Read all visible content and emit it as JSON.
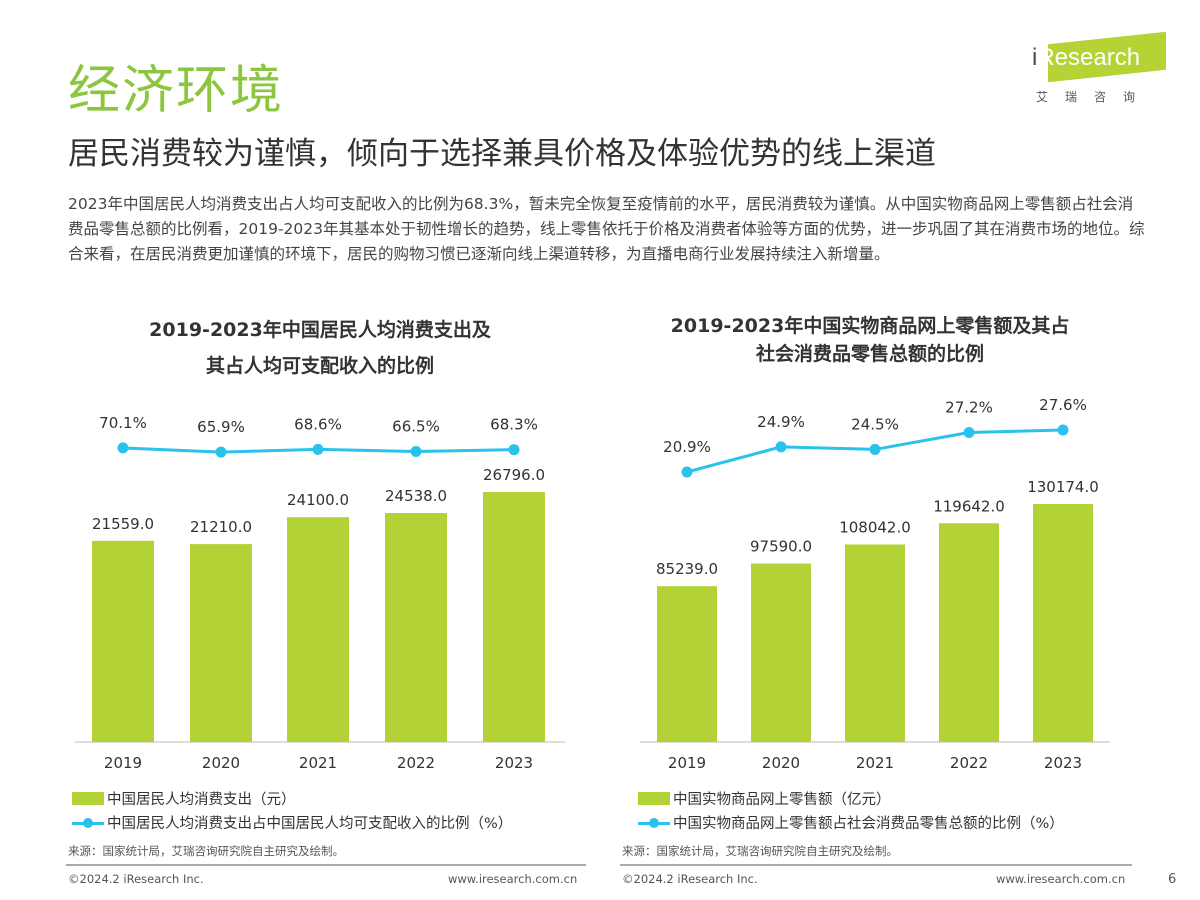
{
  "header": {
    "section_title": "经济环境",
    "subtitle": "居民消费较为谨慎，倾向于选择兼具价格及体验优势的线上渠道",
    "body": "2023年中国居民人均消费支出占人均可支配收入的比例为68.3%，暂未完全恢复至疫情前的水平，居民消费较为谨慎。从中国实物商品网上零售额占社会消费品零售总额的比例看，2019-2023年其基本处于韧性增长的趋势，线上零售依托于价格及消费者体验等方面的优势，进一步巩固了其在消费市场的地位。综合来看，在居民消费更加谨慎的环境下，居民的购物习惯已逐渐向线上渠道转移，为直播电商行业发展持续注入新增量。"
  },
  "logo": {
    "text_i": "i",
    "text": "Research",
    "cn": "艾瑞咨询"
  },
  "colors": {
    "bar": "#b2d235",
    "line": "#29c2ec",
    "title_green": "#8cc63f"
  },
  "chart_data": [
    {
      "type": "bar+line",
      "title_line1": "2019-2023年中国居民人均消费支出及",
      "title_line2": "其占人均可支配收入的比例",
      "categories": [
        "2019",
        "2020",
        "2021",
        "2022",
        "2023"
      ],
      "series": [
        {
          "name": "中国居民人均消费支出（元）",
          "type": "bar",
          "values": [
            21559.0,
            21210.0,
            24100.0,
            24538.0,
            26796.0
          ],
          "labels": [
            "21559.0",
            "21210.0",
            "24100.0",
            "24538.0",
            "26796.0"
          ]
        },
        {
          "name": "中国居民人均消费支出占中国居民人均可支配收入的比例（%）",
          "type": "line",
          "values": [
            70.1,
            65.9,
            68.6,
            66.5,
            68.3
          ],
          "labels": [
            "70.1%",
            "65.9%",
            "68.6%",
            "66.5%",
            "68.3%"
          ]
        }
      ],
      "source": "来源：国家统计局，艾瑞咨询研究院自主研究及绘制。"
    },
    {
      "type": "bar+line",
      "title_line1": "2019-2023年中国实物商品网上零售额及其占",
      "title_line2": "社会消费品零售总额的比例",
      "categories": [
        "2019",
        "2020",
        "2021",
        "2022",
        "2023"
      ],
      "series": [
        {
          "name": "中国实物商品网上零售额（亿元）",
          "type": "bar",
          "values": [
            85239.0,
            97590.0,
            108042.0,
            119642.0,
            130174.0
          ],
          "labels": [
            "85239.0",
            "97590.0",
            "108042.0",
            "119642.0",
            "130174.0"
          ]
        },
        {
          "name": "中国实物商品网上零售额占社会消费品零售总额的比例（%）",
          "type": "line",
          "values": [
            20.9,
            24.9,
            24.5,
            27.2,
            27.6
          ],
          "labels": [
            "20.9%",
            "24.9%",
            "24.5%",
            "27.2%",
            "27.6%"
          ]
        }
      ],
      "source": "来源：国家统计局，艾瑞咨询研究院自主研究及绘制。"
    }
  ],
  "footer": {
    "copyright": "©2024.2 iResearch Inc.",
    "url": "www.iresearch.com.cn",
    "page": "6"
  }
}
